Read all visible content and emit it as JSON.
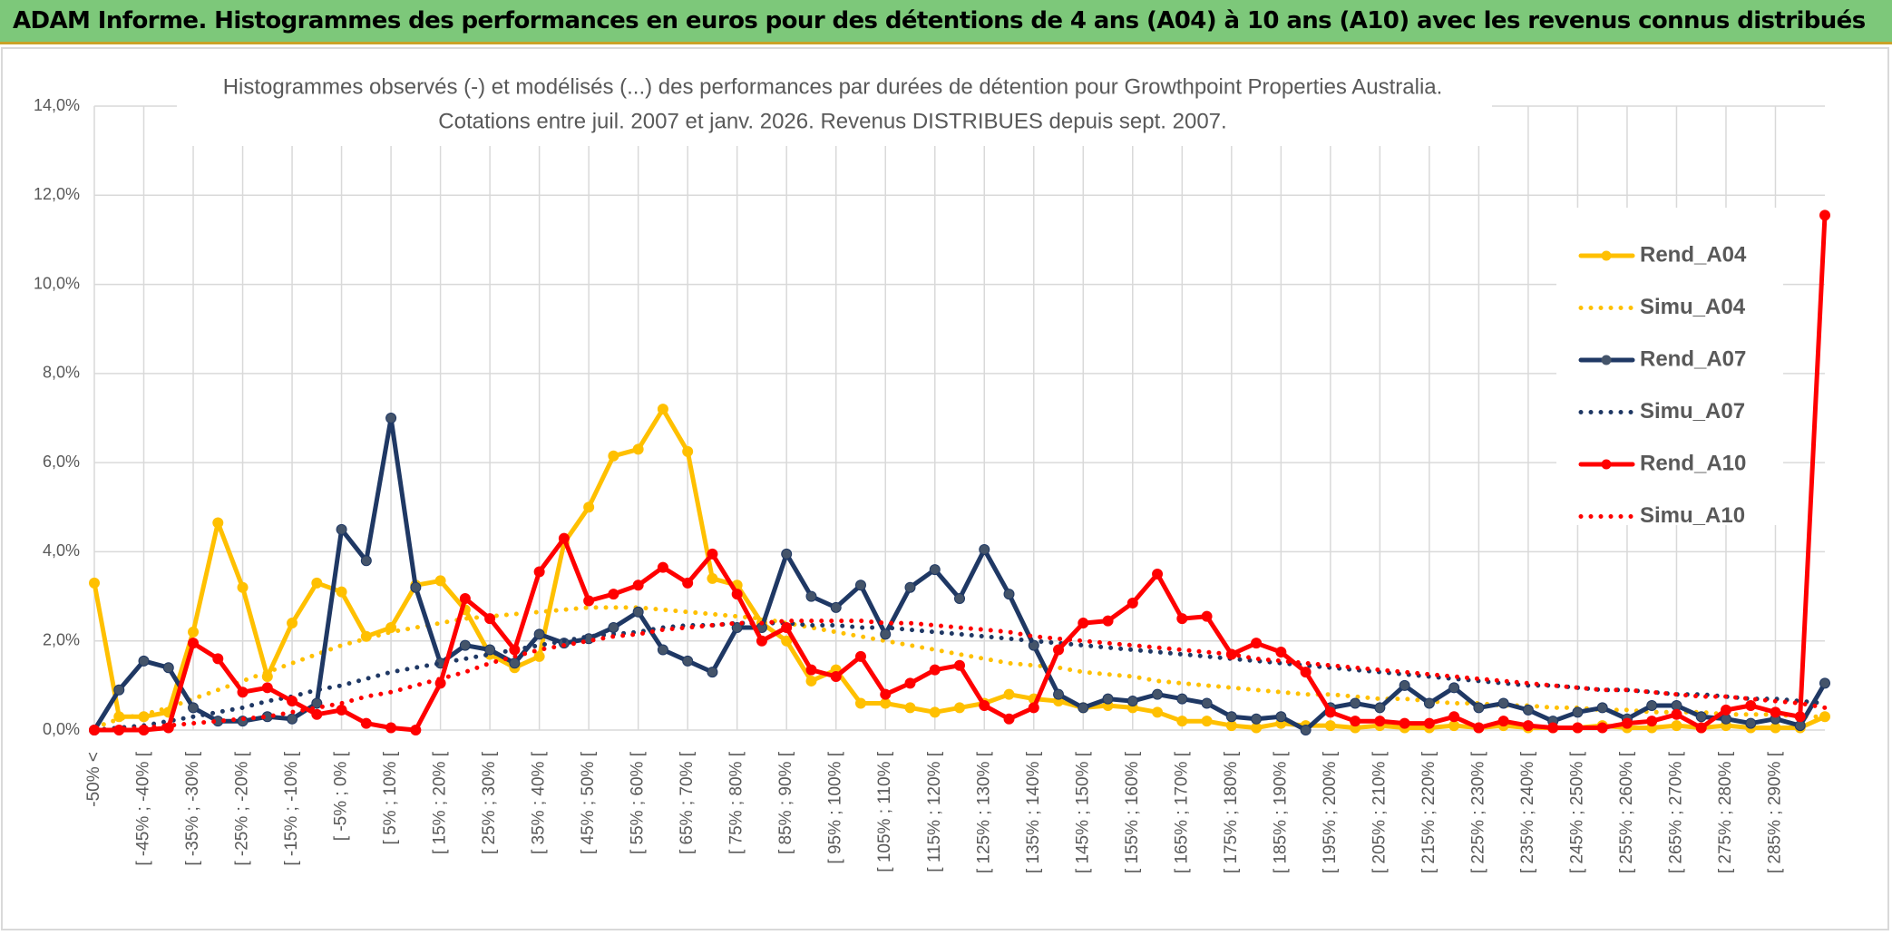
{
  "header": {
    "title": "ADAM Informe. Histogrammes des performances en euros pour des détentions de 4 ans (A04) à 10 ans (A10) avec les revenus connus distribués"
  },
  "chart_data": {
    "type": "line",
    "title": [
      "Histogrammes observés (-) et modélisés (...) des performances par durées de détention pour Growthpoint Properties Australia.",
      "Cotations entre juil. 2007 et janv. 2026. Revenus DISTRIBUES depuis sept. 2007."
    ],
    "categories": [
      "-50% <",
      null,
      "[ -45% ; -40% [",
      null,
      "[ -35% ; -30% [",
      null,
      "[ -25% ; -20% [",
      null,
      "[ -15% ; -10% [",
      null,
      "[ -5% ; 0% [",
      null,
      "[ 5% ; 10% [",
      null,
      "[ 15% ; 20% [",
      null,
      "[ 25% ; 30% [",
      null,
      "[ 35% ; 40% [",
      null,
      "[ 45% ; 50% [",
      null,
      "[ 55% ; 60% [",
      null,
      "[ 65% ; 70% [",
      null,
      "[ 75% ; 80% [",
      null,
      "[ 85% ; 90% [",
      null,
      "[ 95% ; 100% [",
      null,
      "[ 105% ; 110% [",
      null,
      "[ 115% ; 120% [",
      null,
      "[ 125% ; 130% [",
      null,
      "[ 135% ; 140% [",
      null,
      "[ 145% ; 150% [",
      null,
      "[ 155% ; 160% [",
      null,
      "[ 165% ; 170% [",
      null,
      "[ 175% ; 180% [",
      null,
      "[ 185% ; 190% [",
      null,
      "[ 195% ; 200% [",
      null,
      "[ 205% ; 210% [",
      null,
      "[ 215% ; 220% [",
      null,
      "[ 225% ; 230% [",
      null,
      "[ 235% ; 240% [",
      null,
      "[ 245% ; 250% [",
      null,
      "[ 255% ; 260% [",
      null,
      "[ 265% ; 270% [",
      null,
      "[ 275% ; 280% [",
      null,
      "[ 285% ; 290% [",
      null,
      null
    ],
    "series": [
      {
        "name": "Rend_A04",
        "color": "#FFC000",
        "style": "solid",
        "values": [
          3.3,
          0.3,
          0.3,
          0.4,
          2.2,
          4.65,
          3.2,
          1.2,
          2.4,
          3.3,
          3.1,
          2.1,
          2.3,
          3.25,
          3.35,
          2.7,
          1.7,
          1.4,
          1.65,
          4.2,
          5.0,
          6.15,
          6.3,
          7.2,
          6.25,
          3.4,
          3.25,
          2.4,
          2.0,
          1.1,
          1.35,
          0.6,
          0.6,
          0.5,
          0.4,
          0.5,
          0.6,
          0.8,
          0.7,
          0.65,
          0.5,
          0.55,
          0.5,
          0.4,
          0.2,
          0.2,
          0.1,
          0.05,
          0.15,
          0.1,
          0.1,
          0.05,
          0.1,
          0.05,
          0.05,
          0.1,
          0.05,
          0.1,
          0.05,
          0.05,
          0.05,
          0.1,
          0.05,
          0.05,
          0.1,
          0.05,
          0.1,
          0.05,
          0.05,
          0.05,
          0.3
        ]
      },
      {
        "name": "Simu_A04",
        "color": "#FFC000",
        "style": "dotted",
        "values": [
          0.05,
          0.25,
          0.35,
          0.5,
          0.7,
          0.9,
          1.1,
          1.3,
          1.5,
          1.7,
          1.9,
          2.05,
          2.2,
          2.3,
          2.4,
          2.5,
          2.55,
          2.6,
          2.65,
          2.7,
          2.75,
          2.75,
          2.75,
          2.7,
          2.65,
          2.6,
          2.55,
          2.5,
          2.4,
          2.3,
          2.2,
          2.1,
          2.0,
          1.9,
          1.8,
          1.7,
          1.6,
          1.5,
          1.45,
          1.4,
          1.3,
          1.25,
          1.2,
          1.1,
          1.05,
          1.0,
          0.95,
          0.9,
          0.85,
          0.8,
          0.8,
          0.75,
          0.7,
          0.7,
          0.65,
          0.6,
          0.6,
          0.55,
          0.55,
          0.5,
          0.5,
          0.45,
          0.45,
          0.4,
          0.4,
          0.4,
          0.35,
          0.35,
          0.35,
          0.3,
          0.3
        ]
      },
      {
        "name": "Rend_A07",
        "color": "#1F3864",
        "style": "solid",
        "values": [
          0.0,
          0.9,
          1.55,
          1.4,
          0.5,
          0.2,
          0.2,
          0.3,
          0.25,
          0.6,
          4.5,
          3.8,
          7.0,
          3.2,
          1.5,
          1.9,
          1.8,
          1.5,
          2.15,
          1.95,
          2.05,
          2.3,
          2.65,
          1.8,
          1.55,
          1.3,
          2.3,
          2.3,
          3.95,
          3.0,
          2.75,
          3.25,
          2.15,
          3.2,
          3.6,
          2.95,
          4.05,
          3.05,
          1.9,
          0.8,
          0.5,
          0.7,
          0.65,
          0.8,
          0.7,
          0.6,
          0.3,
          0.25,
          0.3,
          0.0,
          0.5,
          0.6,
          0.5,
          1.0,
          0.6,
          0.95,
          0.5,
          0.6,
          0.45,
          0.2,
          0.4,
          0.5,
          0.25,
          0.55,
          0.55,
          0.3,
          0.25,
          0.15,
          0.25,
          0.1,
          1.05
        ]
      },
      {
        "name": "Simu_A07",
        "color": "#1F3864",
        "style": "dotted",
        "values": [
          0,
          0.05,
          0.1,
          0.2,
          0.3,
          0.4,
          0.5,
          0.65,
          0.75,
          0.9,
          1.0,
          1.15,
          1.3,
          1.4,
          1.5,
          1.6,
          1.7,
          1.8,
          1.9,
          2.0,
          2.1,
          2.15,
          2.2,
          2.3,
          2.35,
          2.35,
          2.4,
          2.4,
          2.4,
          2.35,
          2.35,
          2.3,
          2.3,
          2.25,
          2.2,
          2.15,
          2.1,
          2.05,
          2.0,
          1.95,
          1.9,
          1.85,
          1.8,
          1.75,
          1.7,
          1.65,
          1.6,
          1.55,
          1.5,
          1.45,
          1.4,
          1.35,
          1.3,
          1.25,
          1.2,
          1.15,
          1.1,
          1.05,
          1.0,
          1.0,
          0.95,
          0.9,
          0.9,
          0.85,
          0.8,
          0.8,
          0.75,
          0.7,
          0.7,
          0.65,
          0.6
        ]
      },
      {
        "name": "Rend_A10",
        "color": "#FF0000",
        "style": "solid",
        "values": [
          0,
          0,
          0,
          0.05,
          1.95,
          1.6,
          0.85,
          0.95,
          0.65,
          0.35,
          0.45,
          0.15,
          0.05,
          0.0,
          1.05,
          2.95,
          2.5,
          1.8,
          3.55,
          4.3,
          2.9,
          3.05,
          3.25,
          3.65,
          3.3,
          3.95,
          3.05,
          2.0,
          2.3,
          1.35,
          1.2,
          1.65,
          0.8,
          1.05,
          1.35,
          1.45,
          0.55,
          0.25,
          0.5,
          1.8,
          2.4,
          2.45,
          2.85,
          3.5,
          2.5,
          2.55,
          1.7,
          1.95,
          1.75,
          1.3,
          0.4,
          0.2,
          0.2,
          0.15,
          0.15,
          0.3,
          0.05,
          0.2,
          0.1,
          0.05,
          0.05,
          0.05,
          0.15,
          0.2,
          0.35,
          0.05,
          0.45,
          0.55,
          0.4,
          0.3,
          11.55
        ]
      },
      {
        "name": "Simu_A10",
        "color": "#FF0000",
        "style": "dotted",
        "values": [
          0,
          0.02,
          0.05,
          0.1,
          0.15,
          0.2,
          0.25,
          0.3,
          0.4,
          0.5,
          0.6,
          0.75,
          0.85,
          1.0,
          1.15,
          1.3,
          1.5,
          1.65,
          1.8,
          1.9,
          2.0,
          2.1,
          2.15,
          2.25,
          2.3,
          2.35,
          2.4,
          2.4,
          2.45,
          2.45,
          2.45,
          2.45,
          2.4,
          2.4,
          2.35,
          2.3,
          2.25,
          2.2,
          2.1,
          2.05,
          2.0,
          1.95,
          1.9,
          1.85,
          1.8,
          1.75,
          1.7,
          1.6,
          1.55,
          1.5,
          1.45,
          1.4,
          1.35,
          1.3,
          1.25,
          1.2,
          1.15,
          1.1,
          1.05,
          1.0,
          0.95,
          0.9,
          0.9,
          0.85,
          0.8,
          0.75,
          0.75,
          0.7,
          0.65,
          0.6,
          0.5
        ]
      }
    ],
    "ylim": [
      0,
      14
    ],
    "yticks": [
      {
        "value": 0,
        "label": "0,0%"
      },
      {
        "value": 2,
        "label": "2,0%"
      },
      {
        "value": 4,
        "label": "4,0%"
      },
      {
        "value": 6,
        "label": "6,0%"
      },
      {
        "value": 8,
        "label": "8,0%"
      },
      {
        "value": 10,
        "label": "10,0%"
      },
      {
        "value": 12,
        "label": "12,0%"
      },
      {
        "value": 14,
        "label": "14,0%"
      }
    ],
    "grid": true,
    "legend": "right"
  }
}
